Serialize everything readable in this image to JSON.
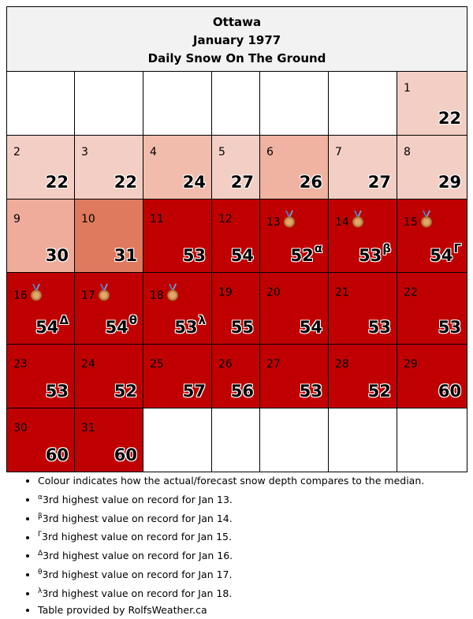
{
  "header": {
    "city": "Ottawa",
    "month": "January 1977",
    "subtitle": "Daily Snow On The Ground"
  },
  "colors": {
    "c22": "#f3cec4",
    "c24": "#f2bcad",
    "c26": "#f0b2a1",
    "c27": "#f3cec4",
    "c29": "#f3cec4",
    "c30": "#efac9b",
    "c31": "#e07a5e",
    "high": "#c00000"
  },
  "weeks": [
    [
      null,
      null,
      null,
      null,
      null,
      null,
      {
        "day": "1",
        "value": "22",
        "color": "#f3cec4"
      }
    ],
    [
      {
        "day": "2",
        "value": "22",
        "color": "#f3cec4"
      },
      {
        "day": "3",
        "value": "22",
        "color": "#f3cec4"
      },
      {
        "day": "4",
        "value": "24",
        "color": "#f2bcad"
      },
      {
        "day": "5",
        "value": "27",
        "color": "#f3cec4"
      },
      {
        "day": "6",
        "value": "26",
        "color": "#f0b2a1"
      },
      {
        "day": "7",
        "value": "27",
        "color": "#f3cec4"
      },
      {
        "day": "8",
        "value": "29",
        "color": "#f3cec4"
      }
    ],
    [
      {
        "day": "9",
        "value": "30",
        "color": "#efac9b"
      },
      {
        "day": "10",
        "value": "31",
        "color": "#e07a5e"
      },
      {
        "day": "11",
        "value": "53",
        "color": "#c00000"
      },
      {
        "day": "12",
        "value": "54",
        "color": "#c00000"
      },
      {
        "day": "13",
        "value": "52",
        "color": "#c00000",
        "medal": true,
        "mark": "α"
      },
      {
        "day": "14",
        "value": "53",
        "color": "#c00000",
        "medal": true,
        "mark": "β"
      },
      {
        "day": "15",
        "value": "54",
        "color": "#c00000",
        "medal": true,
        "mark": "Γ"
      }
    ],
    [
      {
        "day": "16",
        "value": "54",
        "color": "#c00000",
        "medal": true,
        "mark": "Δ"
      },
      {
        "day": "17",
        "value": "54",
        "color": "#c00000",
        "medal": true,
        "mark": "θ"
      },
      {
        "day": "18",
        "value": "53",
        "color": "#c00000",
        "medal": true,
        "mark": "λ"
      },
      {
        "day": "19",
        "value": "55",
        "color": "#c00000"
      },
      {
        "day": "20",
        "value": "54",
        "color": "#c00000"
      },
      {
        "day": "21",
        "value": "53",
        "color": "#c00000"
      },
      {
        "day": "22",
        "value": "53",
        "color": "#c00000"
      }
    ],
    [
      {
        "day": "23",
        "value": "53",
        "color": "#c00000"
      },
      {
        "day": "24",
        "value": "52",
        "color": "#c00000"
      },
      {
        "day": "25",
        "value": "57",
        "color": "#c00000"
      },
      {
        "day": "26",
        "value": "56",
        "color": "#c00000"
      },
      {
        "day": "27",
        "value": "53",
        "color": "#c00000"
      },
      {
        "day": "28",
        "value": "52",
        "color": "#c00000"
      },
      {
        "day": "29",
        "value": "60",
        "color": "#c00000"
      }
    ],
    [
      {
        "day": "30",
        "value": "60",
        "color": "#c00000"
      },
      {
        "day": "31",
        "value": "60",
        "color": "#c00000"
      },
      null,
      null,
      null,
      null,
      null
    ]
  ],
  "notes": {
    "colour": "Colour indicates how the actual/forecast snow depth compares to the median.",
    "items": [
      {
        "mark": "α",
        "text": "3rd highest value on record for Jan 13."
      },
      {
        "mark": "β",
        "text": "3rd highest value on record for Jan 14."
      },
      {
        "mark": "Γ",
        "text": "3rd highest value on record for Jan 15."
      },
      {
        "mark": "Δ",
        "text": "3rd highest value on record for Jan 16."
      },
      {
        "mark": "θ",
        "text": "3rd highest value on record for Jan 17."
      },
      {
        "mark": "λ",
        "text": "3rd highest value on record for Jan 18."
      }
    ],
    "credit": "Table provided by RolfsWeather.ca"
  }
}
